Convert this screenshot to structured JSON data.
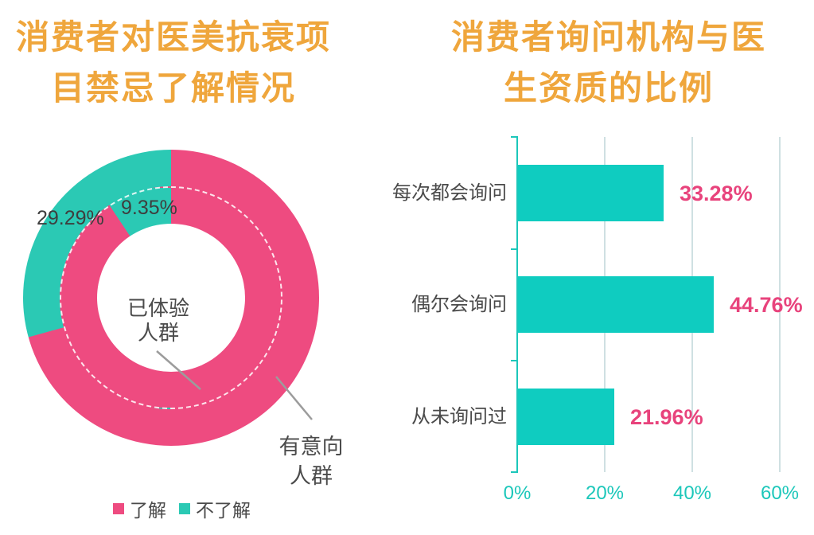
{
  "chart_data": [
    {
      "type": "pie",
      "subtype": "nested-donut",
      "title": "消费者对医美抗衰项目禁忌了解情况",
      "legend": [
        "了解",
        "不了解"
      ],
      "legend_position": "bottom",
      "colors": {
        "了解": "#ee4b80",
        "不了解": "#2bc9b4"
      },
      "rings": [
        {
          "name": "已体验人群",
          "position": "inner",
          "slices": [
            {
              "label": "了解",
              "value": 90.65
            },
            {
              "label": "不了解",
              "value": 9.35,
              "shown_label": "9.35%"
            }
          ]
        },
        {
          "name": "有意向人群",
          "position": "outer",
          "slices": [
            {
              "label": "了解",
              "value": 70.71
            },
            {
              "label": "不了解",
              "value": 29.29,
              "shown_label": "29.29%"
            }
          ]
        }
      ]
    },
    {
      "type": "bar",
      "orientation": "horizontal",
      "title": "消费者询问机构与医生资质的比例",
      "categories": [
        "每次都会询问",
        "偶尔会询问",
        "从未询问过"
      ],
      "values": [
        33.28,
        44.76,
        21.96
      ],
      "value_labels": [
        "33.28%",
        "44.76%",
        "21.96%"
      ],
      "xlim": [
        0,
        60
      ],
      "xticks": [
        "0%",
        "20%",
        "40%",
        "60%"
      ],
      "grid": "vertical",
      "bar_color": "#0fccc0",
      "value_label_color": "#e8437c"
    }
  ],
  "left_panel": {
    "title": [
      "消费者对医美抗衰项",
      "目禁忌了解情况"
    ],
    "donut": {
      "center_name": [
        "已体验",
        "人群"
      ],
      "outer_name": [
        "有意向",
        "人群"
      ],
      "outer_pct_label": "29.29%",
      "inner_pct_label": "9.35%"
    },
    "legend": [
      {
        "label": "了解",
        "color": "#ee4b80"
      },
      {
        "label": "不了解",
        "color": "#2bc9b4"
      }
    ]
  },
  "right_panel": {
    "title": [
      "消费者询问机构与医",
      "生资质的比例"
    ],
    "bars": [
      {
        "category": "每次都会询问",
        "value": 33.28,
        "label": "33.28%"
      },
      {
        "category": "偶尔会询问",
        "value": 44.76,
        "label": "44.76%"
      },
      {
        "category": "从未询问过",
        "value": 21.96,
        "label": "21.96%"
      }
    ],
    "x_ticks": [
      "0%",
      "20%",
      "40%",
      "60%"
    ]
  },
  "colors": {
    "title": "#efa63c",
    "pink": "#ee4b80",
    "teal": "#2bc9b4",
    "bar_teal": "#0fccc0",
    "value_pink": "#e8437c",
    "axis": "#1cc7ba",
    "axis_text": "#1cc7ba",
    "grid": "#cfe0e2",
    "pointer_line": "#9c9c9c"
  }
}
